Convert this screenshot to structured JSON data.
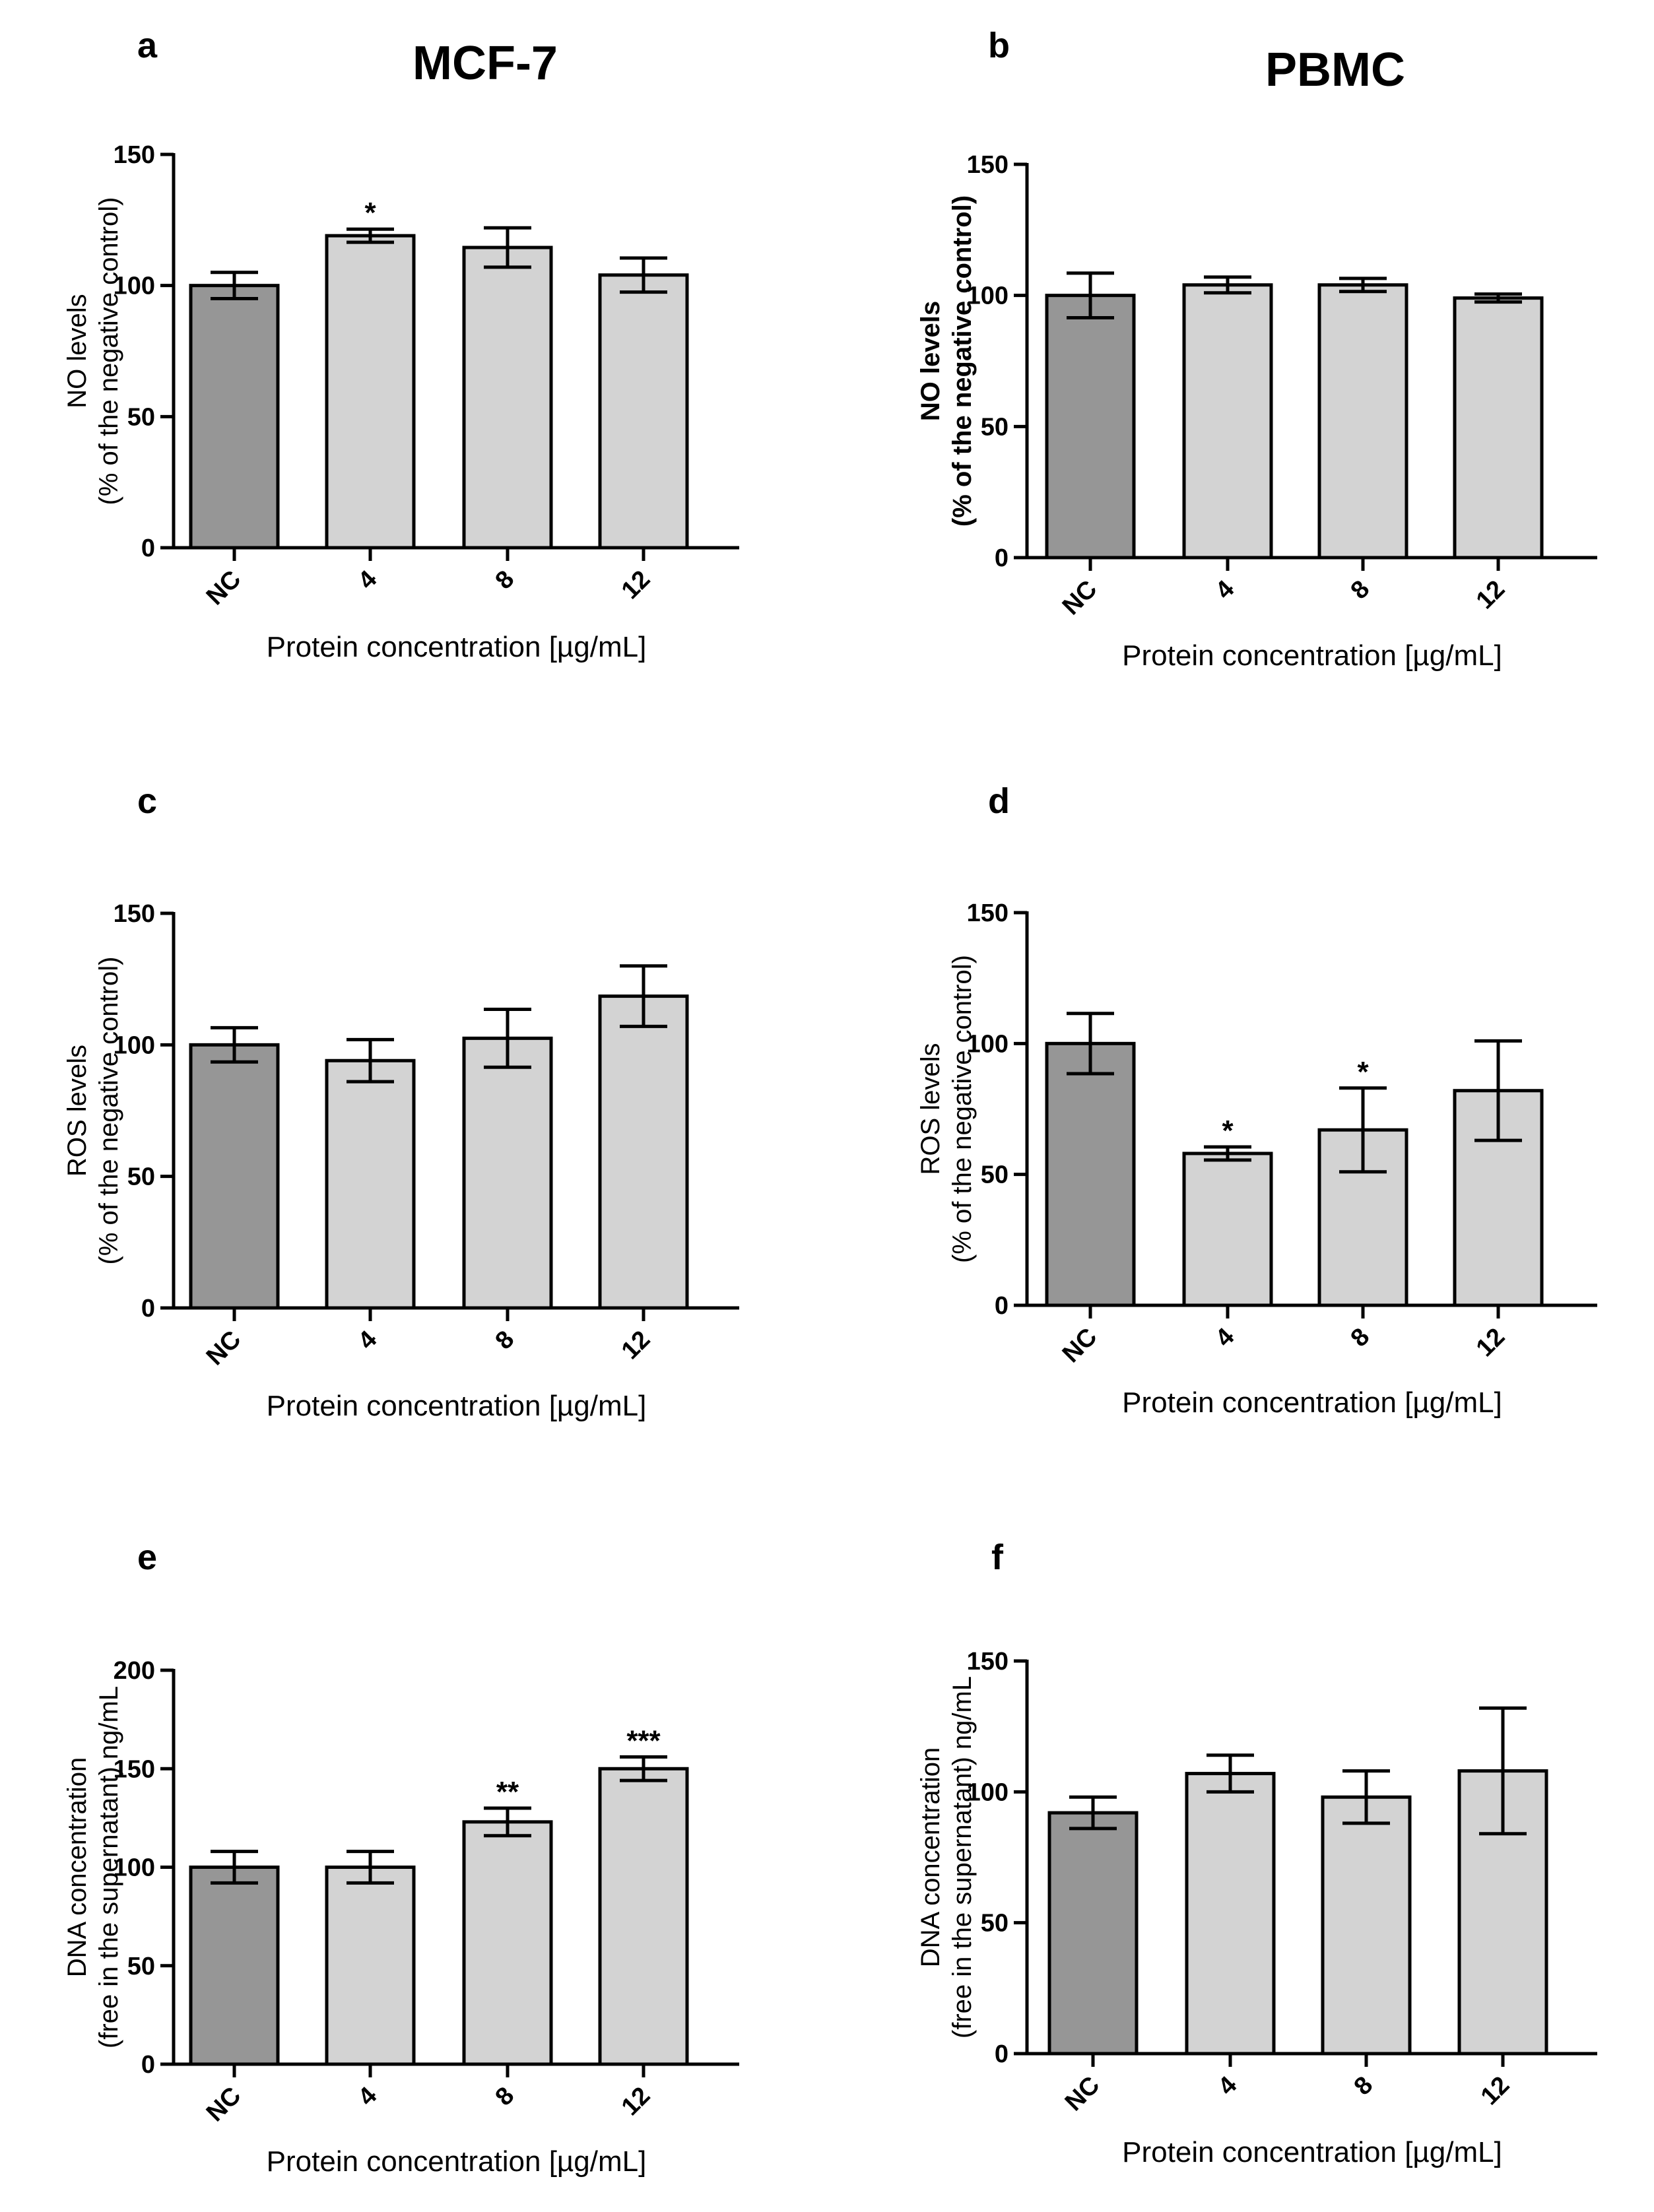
{
  "figure": {
    "column_titles": [
      "MCF-7",
      "PBMC"
    ]
  },
  "colors": {
    "control_bar": "#969696",
    "treatment_bar": "#d3d3d3",
    "stroke": "#000000"
  },
  "chart_data": [
    {
      "panel": "a",
      "type": "bar",
      "categories": [
        "NC",
        "4",
        "8",
        "12"
      ],
      "values": [
        100,
        119,
        114.5,
        104
      ],
      "errors": [
        5,
        2.5,
        7.5,
        6.5
      ],
      "significance": [
        "",
        "*",
        "",
        ""
      ],
      "ylabel_lines": [
        "NO levels",
        "(% of the negative control)"
      ],
      "ylabel_bold": false,
      "xlabel": "Protein concentration [µg/mL]",
      "ylim": [
        0,
        150
      ],
      "yticks": [
        0,
        50,
        100,
        150
      ]
    },
    {
      "panel": "b",
      "type": "bar",
      "categories": [
        "NC",
        "4",
        "8",
        "12"
      ],
      "values": [
        100,
        104,
        104,
        99
      ],
      "errors": [
        8.5,
        3,
        2.5,
        1.5
      ],
      "significance": [
        "",
        "",
        "",
        ""
      ],
      "ylabel_lines": [
        "NO levels",
        "(% of the negative control)"
      ],
      "ylabel_bold": true,
      "xlabel": "Protein concentration [µg/mL]",
      "ylim": [
        0,
        150
      ],
      "yticks": [
        0,
        50,
        100,
        150
      ]
    },
    {
      "panel": "c",
      "type": "bar",
      "categories": [
        "NC",
        "4",
        "8",
        "12"
      ],
      "values": [
        100,
        94,
        102.5,
        118.5
      ],
      "errors": [
        6.5,
        8,
        11,
        11.5
      ],
      "significance": [
        "",
        "",
        "",
        ""
      ],
      "ylabel_lines": [
        "ROS levels",
        "(% of the negative control)"
      ],
      "ylabel_bold": false,
      "xlabel": "Protein concentration [µg/mL]",
      "ylim": [
        0,
        150
      ],
      "yticks": [
        0,
        50,
        100,
        150
      ]
    },
    {
      "panel": "d",
      "type": "bar",
      "categories": [
        "NC",
        "4",
        "8",
        "12"
      ],
      "values": [
        100,
        58,
        67,
        82
      ],
      "errors": [
        11.5,
        2.5,
        16,
        19
      ],
      "significance": [
        "",
        "*",
        "*",
        ""
      ],
      "ylabel_lines": [
        "ROS levels",
        "(% of the negative control)"
      ],
      "ylabel_bold": false,
      "xlabel": "Protein concentration [µg/mL]",
      "ylim": [
        0,
        150
      ],
      "yticks": [
        0,
        50,
        100,
        150
      ]
    },
    {
      "panel": "e",
      "type": "bar",
      "categories": [
        "NC",
        "4",
        "8",
        "12"
      ],
      "values": [
        100,
        100,
        123,
        150
      ],
      "errors": [
        8,
        8,
        7,
        6
      ],
      "significance": [
        "",
        "",
        "**",
        "***"
      ],
      "ylabel_lines": [
        "DNA concentration",
        "(free in the supernatant) ng/mL"
      ],
      "ylabel_bold": false,
      "xlabel": "Protein concentration [µg/mL]",
      "ylim": [
        0,
        200
      ],
      "yticks": [
        0,
        50,
        100,
        150,
        200
      ]
    },
    {
      "panel": "f",
      "type": "bar",
      "categories": [
        "NC",
        "4",
        "8",
        "12"
      ],
      "values": [
        92,
        107,
        98,
        108
      ],
      "errors": [
        6,
        7,
        10,
        24
      ],
      "significance": [
        "",
        "",
        "",
        ""
      ],
      "ylabel_lines": [
        "DNA concentration",
        "(free in the supernatant) ng/mL"
      ],
      "ylabel_bold": false,
      "xlabel": "Protein concentration [µg/mL]",
      "ylim": [
        0,
        150
      ],
      "yticks": [
        0,
        50,
        100,
        150
      ]
    }
  ]
}
